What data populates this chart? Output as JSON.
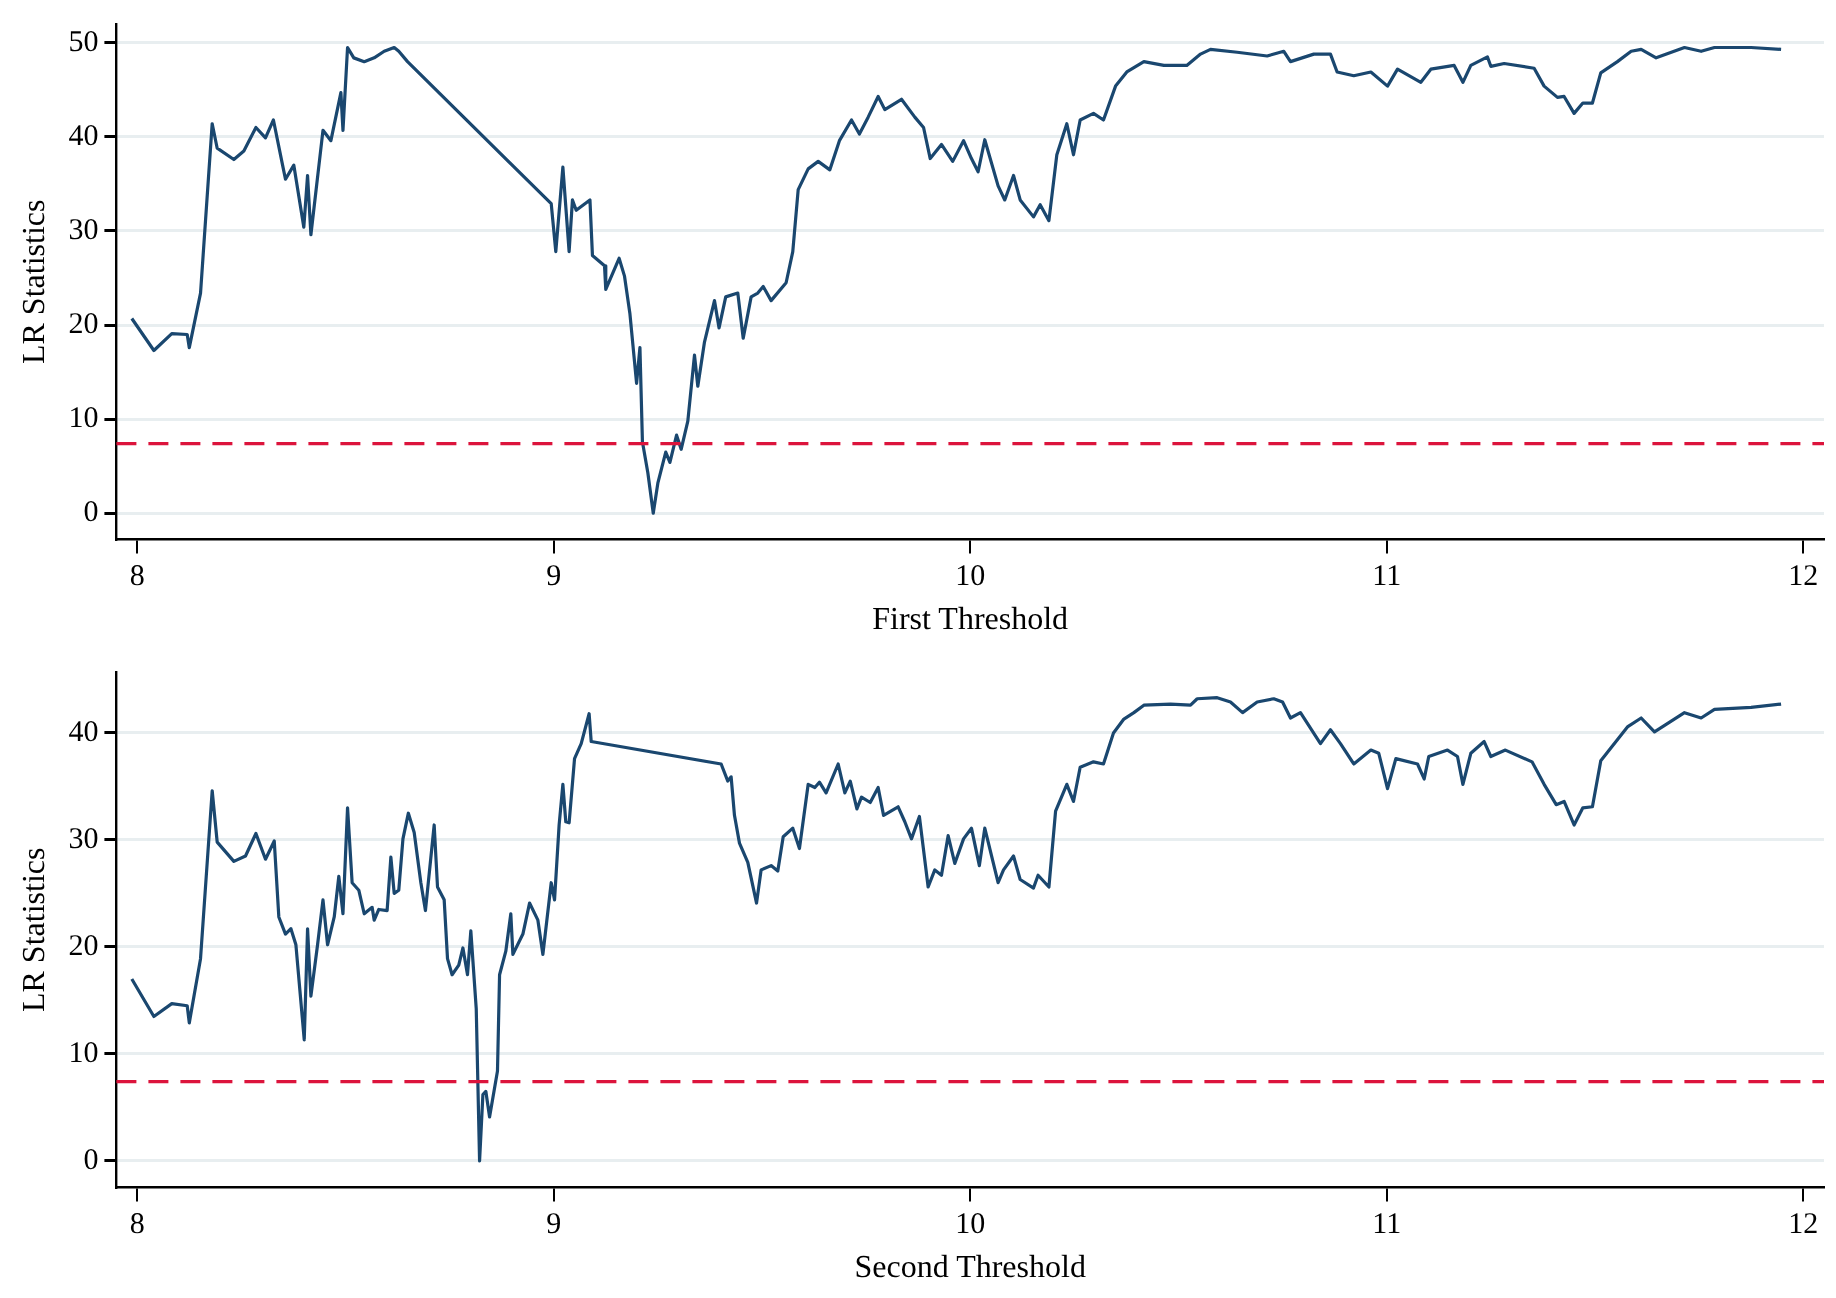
{
  "chart_data": [
    {
      "type": "line",
      "xlabel": "First Threshold",
      "ylabel": "LR Statistics",
      "xlim": [
        7.95,
        12.05
      ],
      "xticks": [
        8,
        9,
        10,
        11,
        12
      ],
      "ylim": [
        -2.8,
        52
      ],
      "yticks": [
        0,
        10,
        20,
        30,
        40,
        50
      ],
      "grid": "y",
      "legend": false,
      "marker": "none",
      "line_style": "solid",
      "ref_lines": [
        {
          "axis": "y",
          "value": 7.4,
          "color": "#dc143c",
          "line_style": "dashed"
        }
      ],
      "series": [
        {
          "color": "#1a476f",
          "x": [
            7.987,
            8.04,
            8.083,
            8.12,
            8.125,
            8.152,
            8.18,
            8.192,
            8.232,
            8.256,
            8.285,
            8.308,
            8.327,
            8.349,
            8.356,
            8.376,
            8.4,
            8.409,
            8.417,
            8.446,
            8.465,
            8.489,
            8.494,
            8.505,
            8.52,
            8.545,
            8.569,
            8.593,
            8.617,
            8.628,
            8.649,
            8.994,
            9.005,
            9.022,
            9.037,
            9.045,
            9.054,
            9.087,
            9.093,
            9.122,
            9.125,
            9.157,
            9.17,
            9.183,
            9.199,
            9.207,
            9.213,
            9.226,
            9.239,
            9.25,
            9.269,
            9.279,
            9.295,
            9.306,
            9.322,
            9.338,
            9.346,
            9.362,
            9.386,
            9.397,
            9.413,
            9.442,
            9.455,
            9.474,
            9.49,
            9.503,
            9.522,
            9.558,
            9.574,
            9.587,
            9.611,
            9.635,
            9.663,
            9.686,
            9.715,
            9.734,
            9.755,
            9.779,
            9.795,
            9.835,
            9.867,
            9.888,
            9.904,
            9.931,
            9.958,
            9.984,
            10.003,
            10.019,
            10.035,
            10.067,
            10.083,
            10.104,
            10.12,
            10.152,
            10.168,
            10.189,
            10.208,
            10.232,
            10.248,
            10.264,
            10.296,
            10.32,
            10.349,
            10.376,
            10.417,
            10.465,
            10.52,
            10.553,
            10.577,
            10.641,
            10.713,
            10.753,
            10.769,
            10.825,
            10.865,
            10.881,
            10.921,
            10.962,
            11.002,
            11.026,
            11.082,
            11.106,
            11.162,
            11.183,
            11.202,
            11.242,
            11.25,
            11.282,
            11.354,
            11.378,
            11.41,
            11.426,
            11.45,
            11.471,
            11.494,
            11.514,
            11.554,
            11.587,
            11.611,
            11.647,
            11.715,
            11.755,
            11.787,
            11.875,
            11.947
          ],
          "values": [
            20.7,
            17.3,
            19.1,
            19.0,
            17.6,
            23.4,
            41.4,
            38.8,
            37.6,
            38.5,
            41.0,
            39.9,
            41.8,
            37.0,
            35.5,
            37.0,
            30.4,
            35.9,
            29.6,
            40.7,
            39.6,
            44.7,
            40.7,
            49.5,
            48.4,
            48.0,
            48.4,
            49.1,
            49.5,
            49.1,
            48.0,
            32.9,
            27.8,
            36.8,
            27.8,
            33.3,
            32.2,
            33.3,
            27.4,
            26.3,
            23.8,
            27.1,
            25.2,
            21.2,
            13.8,
            17.6,
            7.6,
            4.3,
            0,
            3.2,
            6.5,
            5.4,
            8.3,
            6.8,
            9.8,
            16.8,
            13.5,
            18.2,
            22.6,
            19.7,
            23.0,
            23.4,
            18.6,
            23.0,
            23.4,
            24.1,
            22.6,
            24.5,
            27.8,
            34.4,
            36.6,
            37.4,
            36.5,
            39.6,
            41.8,
            40.3,
            42.1,
            44.3,
            42.9,
            44.0,
            42.1,
            41.0,
            37.7,
            39.2,
            37.4,
            39.6,
            37.7,
            36.3,
            39.7,
            34.8,
            33.3,
            35.9,
            33.3,
            31.5,
            32.8,
            31.1,
            38.1,
            41.4,
            38.1,
            41.8,
            42.5,
            41.8,
            45.4,
            46.9,
            48.0,
            47.6,
            47.6,
            48.8,
            49.3,
            49.0,
            48.6,
            49.1,
            48.0,
            48.8,
            48.8,
            46.9,
            46.5,
            46.9,
            45.4,
            47.2,
            45.8,
            47.2,
            47.6,
            45.8,
            47.6,
            48.5,
            47.5,
            47.8,
            47.3,
            45.4,
            44.2,
            44.3,
            42.5,
            43.6,
            43.6,
            46.8,
            48.0,
            49.1,
            49.3,
            48.4,
            49.5,
            49.1,
            49.5,
            49.5,
            49.3
          ]
        }
      ]
    },
    {
      "type": "line",
      "xlabel": "Second Threshold",
      "ylabel": "LR Statistics",
      "xlim": [
        7.95,
        12.05
      ],
      "xticks": [
        8,
        9,
        10,
        11,
        12
      ],
      "ylim": [
        -2.5,
        45.7
      ],
      "yticks": [
        0,
        10,
        20,
        30,
        40
      ],
      "grid": "y",
      "legend": false,
      "marker": "none",
      "line_style": "solid",
      "ref_lines": [
        {
          "axis": "y",
          "value": 7.4,
          "color": "#dc143c",
          "line_style": "dashed"
        }
      ],
      "series": [
        {
          "color": "#1a476f",
          "x": [
            7.987,
            8.04,
            8.083,
            8.12,
            8.125,
            8.152,
            8.18,
            8.192,
            8.232,
            8.26,
            8.285,
            8.308,
            8.329,
            8.34,
            8.356,
            8.369,
            8.381,
            8.401,
            8.409,
            8.417,
            8.433,
            8.446,
            8.457,
            8.473,
            8.484,
            8.494,
            8.505,
            8.516,
            8.532,
            8.545,
            8.564,
            8.569,
            8.58,
            8.6,
            8.609,
            8.617,
            8.628,
            8.638,
            8.651,
            8.665,
            8.681,
            8.692,
            8.713,
            8.721,
            8.737,
            8.745,
            8.756,
            8.772,
            8.782,
            8.793,
            8.801,
            8.814,
            8.822,
            8.83,
            8.837,
            8.846,
            8.865,
            8.87,
            8.885,
            8.897,
            8.902,
            8.926,
            8.942,
            8.962,
            8.974,
            8.994,
            9.002,
            9.013,
            9.022,
            9.029,
            9.037,
            9.05,
            9.066,
            9.085,
            9.09,
            9.402,
            9.418,
            9.426,
            9.434,
            9.446,
            9.466,
            9.487,
            9.498,
            9.522,
            9.538,
            9.551,
            9.574,
            9.59,
            9.611,
            9.627,
            9.638,
            9.654,
            9.683,
            9.699,
            9.712,
            9.728,
            9.739,
            9.76,
            9.779,
            9.792,
            9.827,
            9.843,
            9.859,
            9.878,
            9.899,
            9.915,
            9.931,
            9.947,
            9.963,
            9.984,
            10.003,
            10.022,
            10.035,
            10.067,
            10.08,
            10.104,
            10.12,
            10.152,
            10.163,
            10.189,
            10.205,
            10.232,
            10.248,
            10.264,
            10.296,
            10.32,
            10.344,
            10.369,
            10.393,
            10.417,
            10.481,
            10.529,
            10.545,
            10.593,
            10.625,
            10.654,
            10.689,
            10.729,
            10.75,
            10.769,
            10.793,
            10.841,
            10.865,
            10.889,
            10.921,
            10.962,
            10.981,
            11.002,
            11.022,
            11.074,
            11.09,
            11.101,
            11.146,
            11.17,
            11.183,
            11.202,
            11.234,
            11.25,
            11.285,
            11.349,
            11.378,
            11.407,
            11.426,
            11.45,
            11.471,
            11.494,
            11.514,
            11.579,
            11.611,
            11.643,
            11.715,
            11.755,
            11.787,
            11.875,
            11.947
          ],
          "values": [
            17.0,
            13.5,
            14.7,
            14.5,
            12.9,
            18.9,
            34.6,
            29.8,
            28.0,
            28.5,
            30.6,
            28.2,
            29.9,
            22.8,
            21.2,
            21.7,
            20.2,
            11.3,
            21.7,
            15.4,
            20.2,
            24.4,
            20.2,
            22.8,
            26.6,
            23.1,
            33.0,
            26.0,
            25.3,
            23.1,
            23.7,
            22.5,
            23.5,
            23.4,
            28.4,
            25.0,
            25.3,
            30.1,
            32.5,
            30.7,
            26.0,
            23.4,
            31.4,
            25.6,
            24.4,
            18.9,
            17.4,
            18.3,
            19.9,
            17.4,
            21.5,
            14.2,
            0,
            6.2,
            6.5,
            4.1,
            8.4,
            17.4,
            19.6,
            23.1,
            19.3,
            21.2,
            24.1,
            22.5,
            19.3,
            26.0,
            24.4,
            31.4,
            35.2,
            31.7,
            31.6,
            37.6,
            39.0,
            41.8,
            39.2,
            37.1,
            35.5,
            35.9,
            32.3,
            29.7,
            27.9,
            24.1,
            27.2,
            27.6,
            27.1,
            30.3,
            31.1,
            29.2,
            35.2,
            34.9,
            35.4,
            34.4,
            37.1,
            34.4,
            35.5,
            32.9,
            34.0,
            33.5,
            34.9,
            32.3,
            33.1,
            31.7,
            30.1,
            32.2,
            25.6,
            27.2,
            26.7,
            30.4,
            27.8,
            30.1,
            31.1,
            27.6,
            31.1,
            26.0,
            27.2,
            28.5,
            26.3,
            25.5,
            26.7,
            25.6,
            32.7,
            35.2,
            33.6,
            36.8,
            37.3,
            37.1,
            40.0,
            41.3,
            41.9,
            42.6,
            42.7,
            42.6,
            43.2,
            43.3,
            42.9,
            41.9,
            42.9,
            43.2,
            42.9,
            41.4,
            41.9,
            39.0,
            40.3,
            39.0,
            37.1,
            38.4,
            38.1,
            34.8,
            37.6,
            37.1,
            35.7,
            37.8,
            38.4,
            37.8,
            35.2,
            38.1,
            39.2,
            37.8,
            38.4,
            37.3,
            35.2,
            33.3,
            33.6,
            31.4,
            33.0,
            33.1,
            37.4,
            40.6,
            41.4,
            40.1,
            41.9,
            41.4,
            42.2,
            42.4,
            42.7
          ]
        }
      ]
    }
  ]
}
